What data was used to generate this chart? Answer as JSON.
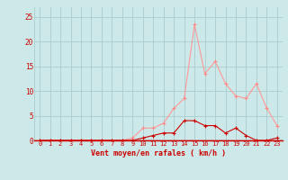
{
  "x": [
    0,
    1,
    2,
    3,
    4,
    5,
    6,
    7,
    8,
    9,
    10,
    11,
    12,
    13,
    14,
    15,
    16,
    17,
    18,
    19,
    20,
    21,
    22,
    23
  ],
  "y_light": [
    0.0,
    0.0,
    0.0,
    0.0,
    0.0,
    0.0,
    0.0,
    0.0,
    0.0,
    0.5,
    2.5,
    2.5,
    3.5,
    6.5,
    8.5,
    23.5,
    13.5,
    16.0,
    11.5,
    9.0,
    8.5,
    11.5,
    6.5,
    3.0
  ],
  "y_dark": [
    0.0,
    0.0,
    0.0,
    0.0,
    0.0,
    0.0,
    0.0,
    0.0,
    0.0,
    0.0,
    0.5,
    1.0,
    1.5,
    1.5,
    4.0,
    4.0,
    3.0,
    3.0,
    1.5,
    2.5,
    1.0,
    0.0,
    0.0,
    0.5
  ],
  "xlabel": "Vent moyen/en rafales ( km/h )",
  "ylim": [
    0,
    27
  ],
  "yticks": [
    0,
    5,
    10,
    15,
    20,
    25
  ],
  "bg_color": "#cce8e8",
  "grid_color": "#aacccc",
  "line_color_light": "#ff9999",
  "line_color_dark": "#cc0000",
  "marker_color_light": "#ff8888",
  "marker_color_dark": "#cc0000",
  "xlabel_color": "#cc0000",
  "tick_color": "#cc0000"
}
